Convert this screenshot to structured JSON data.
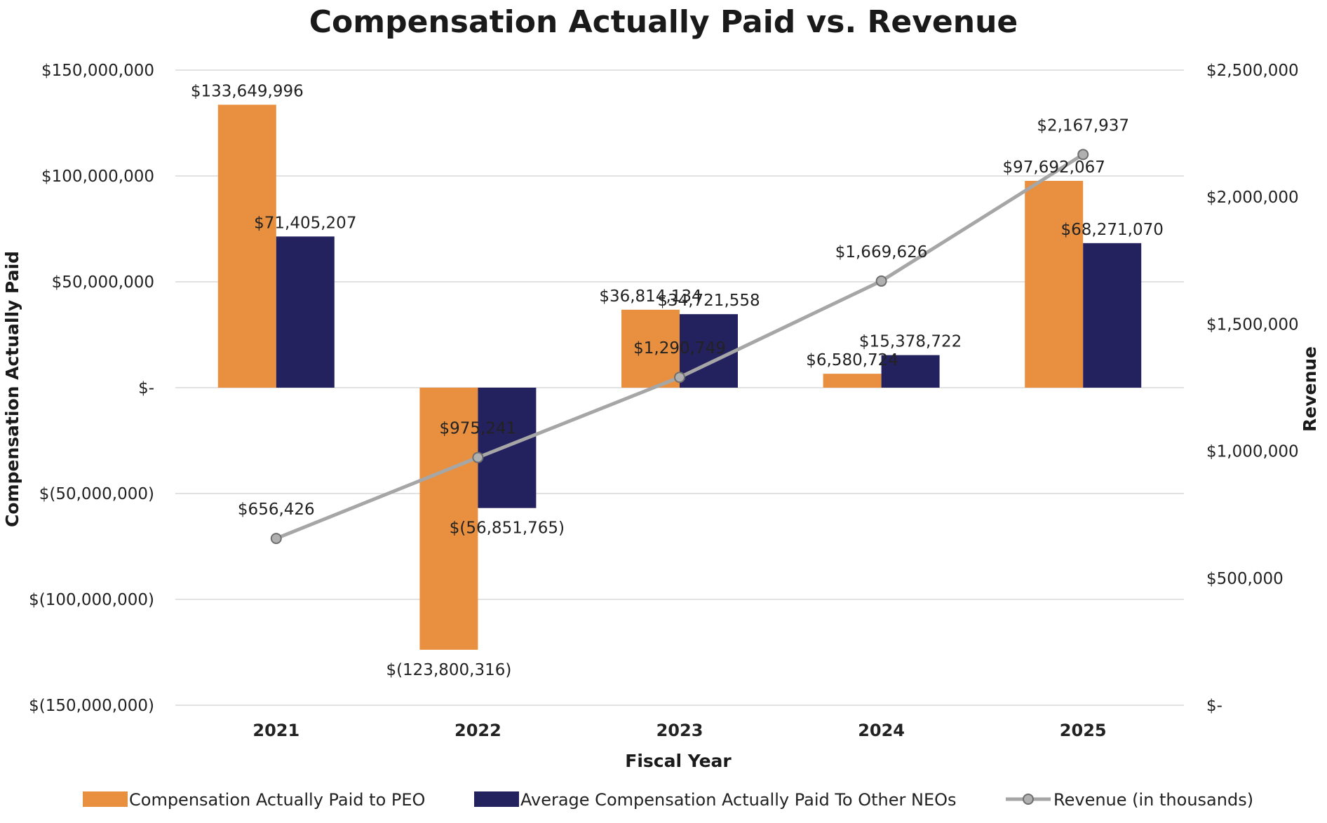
{
  "chart_data": {
    "type": "bar",
    "title": "Compensation Actually Paid vs. Revenue",
    "xlabel": "Fiscal Year",
    "ylabel": "Compensation Actually Paid",
    "y2label": "Revenue",
    "categories": [
      "2021",
      "2022",
      "2023",
      "2024",
      "2025"
    ],
    "ylim": [
      -150000000,
      150000000
    ],
    "y2lim": [
      0,
      2500000
    ],
    "yticks": [
      {
        "value": 150000000,
        "label": "$150,000,000"
      },
      {
        "value": 100000000,
        "label": "$100,000,000"
      },
      {
        "value": 50000000,
        "label": "$50,000,000"
      },
      {
        "value": 0,
        "label": "$-"
      },
      {
        "value": -50000000,
        "label": "$(50,000,000)"
      },
      {
        "value": -100000000,
        "label": "$(100,000,000)"
      },
      {
        "value": -150000000,
        "label": "$(150,000,000)"
      }
    ],
    "y2ticks": [
      {
        "value": 2500000,
        "label": "$2,500,000"
      },
      {
        "value": 2000000,
        "label": "$2,000,000"
      },
      {
        "value": 1500000,
        "label": "$1,500,000"
      },
      {
        "value": 1000000,
        "label": "$1,000,000"
      },
      {
        "value": 500000,
        "label": "$500,000"
      },
      {
        "value": 0,
        "label": "$-"
      }
    ],
    "series": [
      {
        "name": "Compensation Actually Paid to PEO",
        "kind": "bar",
        "axis": "left",
        "color": "#E8903F",
        "values": [
          133649996,
          -123800316,
          36814134,
          6580724,
          97692067
        ],
        "labels": [
          "$133,649,996",
          "$(123,800,316)",
          "$36,814,134",
          "$6,580,724",
          "$97,692,067"
        ]
      },
      {
        "name": "Average Compensation Actually Paid To Other NEOs",
        "kind": "bar",
        "axis": "left",
        "color": "#24215F",
        "values": [
          71405207,
          -56851765,
          34721558,
          15378722,
          68271070
        ],
        "labels": [
          "$71,405,207",
          "$(56,851,765)",
          "$34,721,558",
          "$15,378,722",
          "$68,271,070"
        ]
      },
      {
        "name": "Revenue (in thousands)",
        "kind": "line",
        "axis": "right",
        "color": "#A6A6A6",
        "values": [
          656426,
          975241,
          1290749,
          1669626,
          2167937
        ],
        "labels": [
          "$656,426",
          "$975,241",
          "$1,290,749",
          "$1,669,626",
          "$2,167,937"
        ]
      }
    ],
    "grid": true,
    "legend_position": "bottom"
  }
}
